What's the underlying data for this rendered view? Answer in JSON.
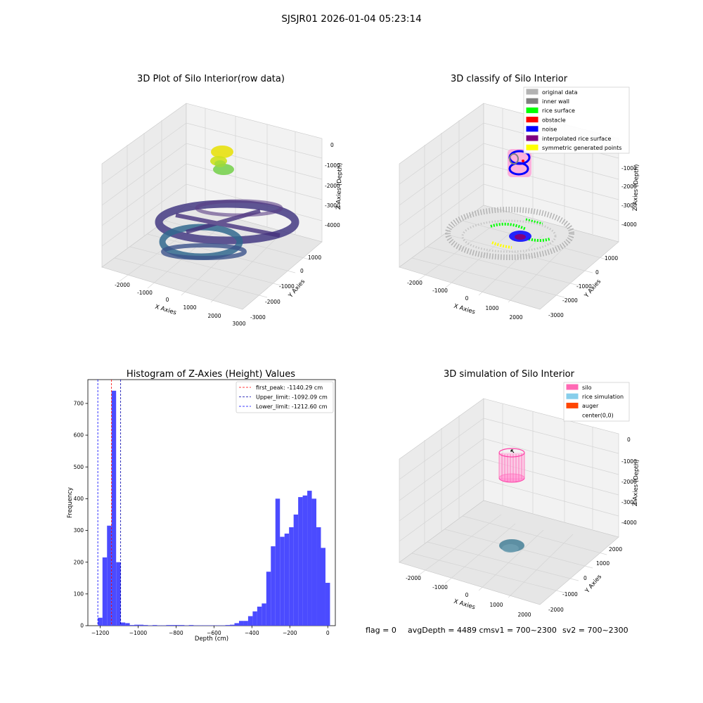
{
  "figure": {
    "suptitle": "SJSJR01 2026-01-04 05:23:14",
    "status_line": {
      "flag": "flag = 0",
      "avg": "avgDepth = 4489 cmsv1 = 700~2300",
      "sv2": "sv2 = 700~2300"
    }
  },
  "colors": {
    "pane": "#f2f2f2",
    "pane_side": "#ebebeb",
    "grid": "#d4d4d4",
    "hist_bar": "#4b4bff",
    "first_peak": "#ff0000",
    "upper_limit": "#0000aa",
    "lower_limit": "#0000ff"
  },
  "chart_data": [
    {
      "type": "scatter",
      "title": "3D Plot of Silo Interior(row data)",
      "xlabel": "X Axies",
      "ylabel": "Y Axies",
      "zlabel": "Z Axies (Depth)",
      "x_ticks": [
        "-2000",
        "-1000",
        "0",
        "1000",
        "2000",
        "3000"
      ],
      "y_ticks": [
        "1000",
        "0",
        "-1000",
        "-2000",
        "-3000"
      ],
      "z_ticks": [
        "0",
        "-1000",
        "-2000",
        "-3000",
        "-4000"
      ],
      "colormap": "viridis (colored by depth)"
    },
    {
      "type": "scatter",
      "title": "3D classify of Silo Interior",
      "xlabel": "X Axies",
      "ylabel": "Y Axies",
      "zlabel": "Z Axies (Depth)",
      "x_ticks": [
        "-2000",
        "-1000",
        "0",
        "1000",
        "2000"
      ],
      "y_ticks": [
        "1000",
        "0",
        "-1000",
        "-2000",
        "-3000"
      ],
      "z_ticks": [
        "-1000",
        "-2000",
        "-3000",
        "-4000"
      ],
      "legend_position": "top-right",
      "legend": [
        {
          "label": "original data",
          "color": "#b3b3b3"
        },
        {
          "label": "inner wall",
          "color": "#808080"
        },
        {
          "label": "rice surface",
          "color": "#00ff00"
        },
        {
          "label": "obstacle",
          "color": "#ff0000"
        },
        {
          "label": "noise",
          "color": "#0000ff"
        },
        {
          "label": "interpolated rice surface",
          "color": "#800080"
        },
        {
          "label": "symmetric generated points",
          "color": "#ffff00"
        }
      ]
    },
    {
      "type": "bar",
      "title": "Histogram of Z-Axies (Height) Values",
      "xlabel": "Depth (cm)",
      "ylabel": "Frequency",
      "xlim": [
        -1265,
        40
      ],
      "ylim": [
        0,
        775
      ],
      "x_ticks": [
        -1200,
        -1000,
        -800,
        -600,
        -400,
        -200,
        0
      ],
      "y_ticks": [
        0,
        100,
        200,
        300,
        400,
        500,
        600,
        700
      ],
      "bin_width": 24,
      "bins": [
        {
          "x": -1212,
          "v": 25
        },
        {
          "x": -1188,
          "v": 215
        },
        {
          "x": -1164,
          "v": 315
        },
        {
          "x": -1140,
          "v": 740
        },
        {
          "x": -1116,
          "v": 200
        },
        {
          "x": -1092,
          "v": 10
        },
        {
          "x": -1068,
          "v": 8
        },
        {
          "x": -1044,
          "v": 2
        },
        {
          "x": -1020,
          "v": 3
        },
        {
          "x": -996,
          "v": 3
        },
        {
          "x": -972,
          "v": 2
        },
        {
          "x": -948,
          "v": 1
        },
        {
          "x": -924,
          "v": 2
        },
        {
          "x": -900,
          "v": 1
        },
        {
          "x": -876,
          "v": 1
        },
        {
          "x": -852,
          "v": 2
        },
        {
          "x": -828,
          "v": 2
        },
        {
          "x": -804,
          "v": 2
        },
        {
          "x": -780,
          "v": 2
        },
        {
          "x": -756,
          "v": 1
        },
        {
          "x": -732,
          "v": 2
        },
        {
          "x": -708,
          "v": 1
        },
        {
          "x": -684,
          "v": 1
        },
        {
          "x": -660,
          "v": 1
        },
        {
          "x": -636,
          "v": 1
        },
        {
          "x": -612,
          "v": 1
        },
        {
          "x": -588,
          "v": 1
        },
        {
          "x": -564,
          "v": 1
        },
        {
          "x": -540,
          "v": 2
        },
        {
          "x": -516,
          "v": 3
        },
        {
          "x": -492,
          "v": 8
        },
        {
          "x": -468,
          "v": 15
        },
        {
          "x": -444,
          "v": 15
        },
        {
          "x": -420,
          "v": 30
        },
        {
          "x": -396,
          "v": 45
        },
        {
          "x": -372,
          "v": 60
        },
        {
          "x": -348,
          "v": 70
        },
        {
          "x": -324,
          "v": 170
        },
        {
          "x": -300,
          "v": 250
        },
        {
          "x": -276,
          "v": 400
        },
        {
          "x": -252,
          "v": 280
        },
        {
          "x": -228,
          "v": 290
        },
        {
          "x": -204,
          "v": 310
        },
        {
          "x": -180,
          "v": 350
        },
        {
          "x": -156,
          "v": 405
        },
        {
          "x": -132,
          "v": 410
        },
        {
          "x": -108,
          "v": 425
        },
        {
          "x": -84,
          "v": 400
        },
        {
          "x": -60,
          "v": 310
        },
        {
          "x": -36,
          "v": 245
        },
        {
          "x": -12,
          "v": 135
        }
      ],
      "vlines": [
        {
          "label": "first_peak: -1140.29 cm",
          "x": -1140.29,
          "color": "#ff0000"
        },
        {
          "label": "Upper_limit: -1092.09 cm",
          "x": -1092.09,
          "color": "#0000aa"
        },
        {
          "label": "Lower_limit: -1212.60 cm",
          "x": -1212.6,
          "color": "#0000ff"
        }
      ],
      "legend_position": "top-right"
    },
    {
      "type": "scatter",
      "title": "3D simulation of Silo Interior",
      "xlabel": "X Axies",
      "ylabel": "Y Axies",
      "zlabel": "Z Axies (Depth)",
      "x_ticks": [
        "-2000",
        "-1000",
        "0",
        "1000",
        "2000"
      ],
      "y_ticks": [
        "2000",
        "1000",
        "0",
        "-1000",
        "-2000"
      ],
      "z_ticks": [
        "0",
        "-1000",
        "-2000",
        "-3000",
        "-4000"
      ],
      "legend_position": "top-right",
      "legend": [
        {
          "label": "silo",
          "color": "#ff69b4"
        },
        {
          "label": "rice simulation",
          "color": "#87ceeb"
        },
        {
          "label": "auger",
          "color": "#ff4500"
        },
        {
          "label": "center(0,0)",
          "color": "#ffffff"
        }
      ]
    }
  ]
}
